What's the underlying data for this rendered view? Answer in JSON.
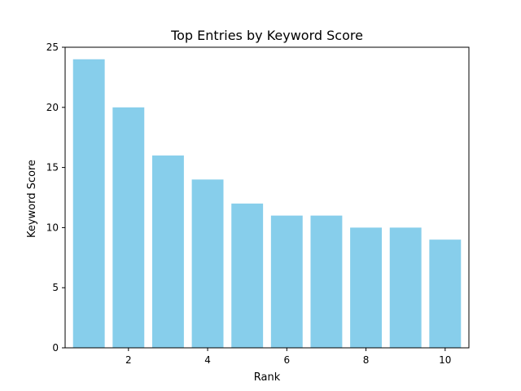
{
  "chart_data": {
    "type": "bar",
    "title": "Top Entries by Keyword Score",
    "xlabel": "Rank",
    "ylabel": "Keyword Score",
    "x": [
      1,
      2,
      3,
      4,
      5,
      6,
      7,
      8,
      9,
      10
    ],
    "values": [
      24,
      20,
      16,
      14,
      12,
      11,
      11,
      10,
      10,
      9
    ],
    "xlim": [
      0.4,
      10.6
    ],
    "ylim": [
      0,
      25
    ],
    "x_ticks": [
      2,
      4,
      6,
      8,
      10
    ],
    "y_ticks": [
      0,
      5,
      10,
      15,
      20,
      25
    ],
    "bar_width": 0.8,
    "bar_color": "#87ceeb",
    "grid": false,
    "legend": "none"
  }
}
